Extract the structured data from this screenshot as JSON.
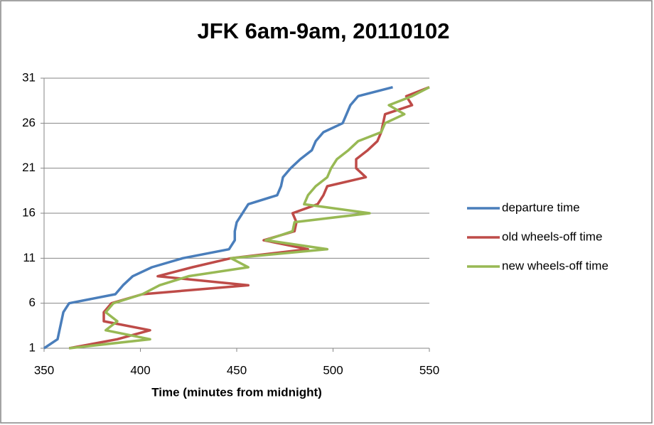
{
  "chart_data": {
    "type": "line",
    "title": "JFK 6am-9am, 20110102",
    "x_label": "Time (minutes from midnight)",
    "xlim": [
      350,
      550
    ],
    "xticks": [
      350,
      400,
      450,
      500,
      550
    ],
    "ylim": [
      1,
      31
    ],
    "yticks": [
      1,
      6,
      11,
      16,
      21,
      26,
      31
    ],
    "grid": true,
    "legend": "right",
    "series": [
      {
        "name": "departure time",
        "color": "#4a7ebb",
        "x": [
          350,
          357,
          358,
          359,
          360,
          363,
          387,
          391,
          396,
          406,
          422,
          446,
          449,
          449,
          450,
          453,
          456,
          471,
          473,
          474,
          478,
          483,
          489,
          491,
          495,
          505,
          507,
          509,
          513,
          531
        ],
        "values": [
          1,
          2,
          3,
          4,
          5,
          6,
          7,
          8,
          9,
          10,
          11,
          12,
          13,
          14,
          15,
          16,
          17,
          18,
          19,
          20,
          21,
          22,
          23,
          24,
          25,
          26,
          27,
          28,
          29,
          30
        ]
      },
      {
        "name": "old wheels-off time",
        "color": "#be4b48",
        "x": [
          363,
          388,
          405,
          381,
          381,
          385,
          401,
          456,
          409,
          427,
          447,
          487,
          464,
          480,
          481,
          479,
          492,
          495,
          497,
          517,
          512,
          512,
          518,
          523,
          525,
          526,
          527,
          541,
          538,
          550
        ],
        "values": [
          1,
          2,
          3,
          4,
          5,
          6,
          7,
          8,
          9,
          10,
          11,
          12,
          13,
          14,
          15,
          16,
          17,
          18,
          19,
          20,
          21,
          22,
          23,
          24,
          25,
          26,
          27,
          28,
          29,
          30
        ]
      },
      {
        "name": "new wheels-off time",
        "color": "#98b954",
        "x": [
          363,
          405,
          382,
          388,
          382,
          386,
          401,
          410,
          425,
          456,
          447,
          497,
          465,
          479,
          480,
          519,
          485,
          487,
          491,
          497,
          499,
          502,
          508,
          513,
          525,
          527,
          537,
          529,
          541,
          550
        ],
        "values": [
          1,
          2,
          3,
          4,
          5,
          6,
          7,
          8,
          9,
          10,
          11,
          12,
          13,
          14,
          15,
          16,
          17,
          18,
          19,
          20,
          21,
          22,
          23,
          24,
          25,
          26,
          27,
          28,
          29,
          30
        ]
      }
    ]
  }
}
